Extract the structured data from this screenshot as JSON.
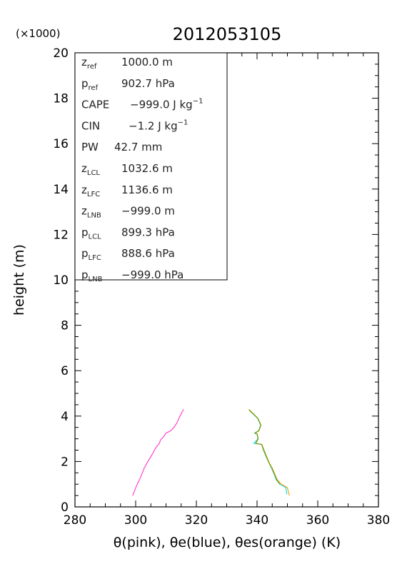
{
  "chart_data": {
    "type": "line",
    "title": "2012053105",
    "xlabel": "θ(pink), θe(blue), θes(orange)   (K)",
    "ylabel": "height (m)",
    "y_multiplier_label": "(×1000)",
    "xlim": [
      280,
      380
    ],
    "ylim": [
      0,
      20
    ],
    "x_ticks": [
      280,
      300,
      320,
      340,
      360,
      380
    ],
    "y_ticks": [
      0,
      2,
      4,
      6,
      8,
      10,
      12,
      14,
      16,
      18,
      20
    ],
    "grid": false,
    "series": [
      {
        "name": "θ",
        "color": "#ff33cc",
        "points": [
          [
            299.0,
            0.5
          ],
          [
            300.2,
            0.9
          ],
          [
            301.6,
            1.3
          ],
          [
            302.8,
            1.7
          ],
          [
            304.0,
            2.0
          ],
          [
            305.4,
            2.3
          ],
          [
            306.6,
            2.6
          ],
          [
            307.8,
            2.8
          ],
          [
            308.2,
            2.95
          ],
          [
            309.3,
            3.1
          ],
          [
            310.0,
            3.25
          ],
          [
            311.5,
            3.35
          ],
          [
            312.6,
            3.5
          ],
          [
            313.6,
            3.7
          ],
          [
            314.6,
            4.0
          ],
          [
            315.4,
            4.2
          ],
          [
            315.8,
            4.3
          ]
        ]
      },
      {
        "name": "θe",
        "color": "#00e5ee",
        "points": [
          [
            349.8,
            0.55
          ],
          [
            349.5,
            0.85
          ],
          [
            347.5,
            1.0
          ],
          [
            346.3,
            1.2
          ],
          [
            345.6,
            1.45
          ],
          [
            344.8,
            1.7
          ],
          [
            343.9,
            1.95
          ],
          [
            343.0,
            2.2
          ],
          [
            342.1,
            2.5
          ],
          [
            341.5,
            2.75
          ],
          [
            338.9,
            2.8
          ],
          [
            340.3,
            3.0
          ],
          [
            340.0,
            3.2
          ],
          [
            339.2,
            3.25
          ],
          [
            340.5,
            3.35
          ],
          [
            341.2,
            3.6
          ],
          [
            340.2,
            3.9
          ],
          [
            338.6,
            4.1
          ],
          [
            337.5,
            4.25
          ]
        ]
      },
      {
        "name": "θes",
        "color": "#ff9900",
        "points": [
          [
            350.6,
            0.5
          ],
          [
            350.0,
            0.85
          ],
          [
            348.0,
            1.0
          ],
          [
            346.6,
            1.2
          ],
          [
            345.8,
            1.45
          ],
          [
            345.0,
            1.7
          ],
          [
            344.0,
            1.95
          ],
          [
            343.2,
            2.2
          ],
          [
            342.3,
            2.5
          ],
          [
            341.6,
            2.75
          ],
          [
            339.6,
            2.8
          ],
          [
            340.4,
            3.0
          ],
          [
            340.1,
            3.2
          ],
          [
            339.4,
            3.25
          ],
          [
            340.6,
            3.35
          ],
          [
            341.3,
            3.6
          ],
          [
            340.3,
            3.9
          ],
          [
            338.8,
            4.1
          ],
          [
            337.3,
            4.3
          ]
        ]
      },
      {
        "name": "",
        "color": "#669900",
        "points": [
          [
            347.5,
            1.0
          ],
          [
            346.5,
            1.2
          ],
          [
            345.7,
            1.45
          ],
          [
            344.9,
            1.7
          ],
          [
            343.9,
            1.95
          ],
          [
            343.1,
            2.2
          ],
          [
            342.2,
            2.5
          ],
          [
            341.5,
            2.75
          ],
          [
            339.5,
            2.8
          ],
          [
            340.35,
            3.0
          ],
          [
            340.05,
            3.2
          ],
          [
            339.3,
            3.25
          ],
          [
            340.55,
            3.35
          ],
          [
            341.25,
            3.6
          ],
          [
            340.25,
            3.9
          ],
          [
            338.7,
            4.1
          ],
          [
            337.4,
            4.27
          ]
        ]
      }
    ],
    "info_box": [
      {
        "label": "z",
        "sub": "ref",
        "value": "1000.0 m",
        "sup": ""
      },
      {
        "label": "p",
        "sub": "ref",
        "value": "902.7 hPa",
        "sup": ""
      },
      {
        "label": "CAPE",
        "sub": "",
        "value": "−999.0 J kg",
        "sup": "−1"
      },
      {
        "label": "CIN",
        "sub": "",
        "value": "−1.2 J kg",
        "sup": "−1"
      },
      {
        "label": "PW",
        "sub": "",
        "value": "42.7 mm",
        "sup": ""
      },
      {
        "label": "z",
        "sub": "LCL",
        "value": "1032.6 m",
        "sup": ""
      },
      {
        "label": "z",
        "sub": "LFC",
        "value": "1136.6 m",
        "sup": ""
      },
      {
        "label": "z",
        "sub": "LNB",
        "value": "−999.0 m",
        "sup": ""
      },
      {
        "label": "p",
        "sub": "LCL",
        "value": "899.3 hPa",
        "sup": ""
      },
      {
        "label": "p",
        "sub": "LFC",
        "value": "888.6 hPa",
        "sup": ""
      },
      {
        "label": "p",
        "sub": "LNB",
        "value": "−999.0 hPa",
        "sup": ""
      }
    ]
  }
}
